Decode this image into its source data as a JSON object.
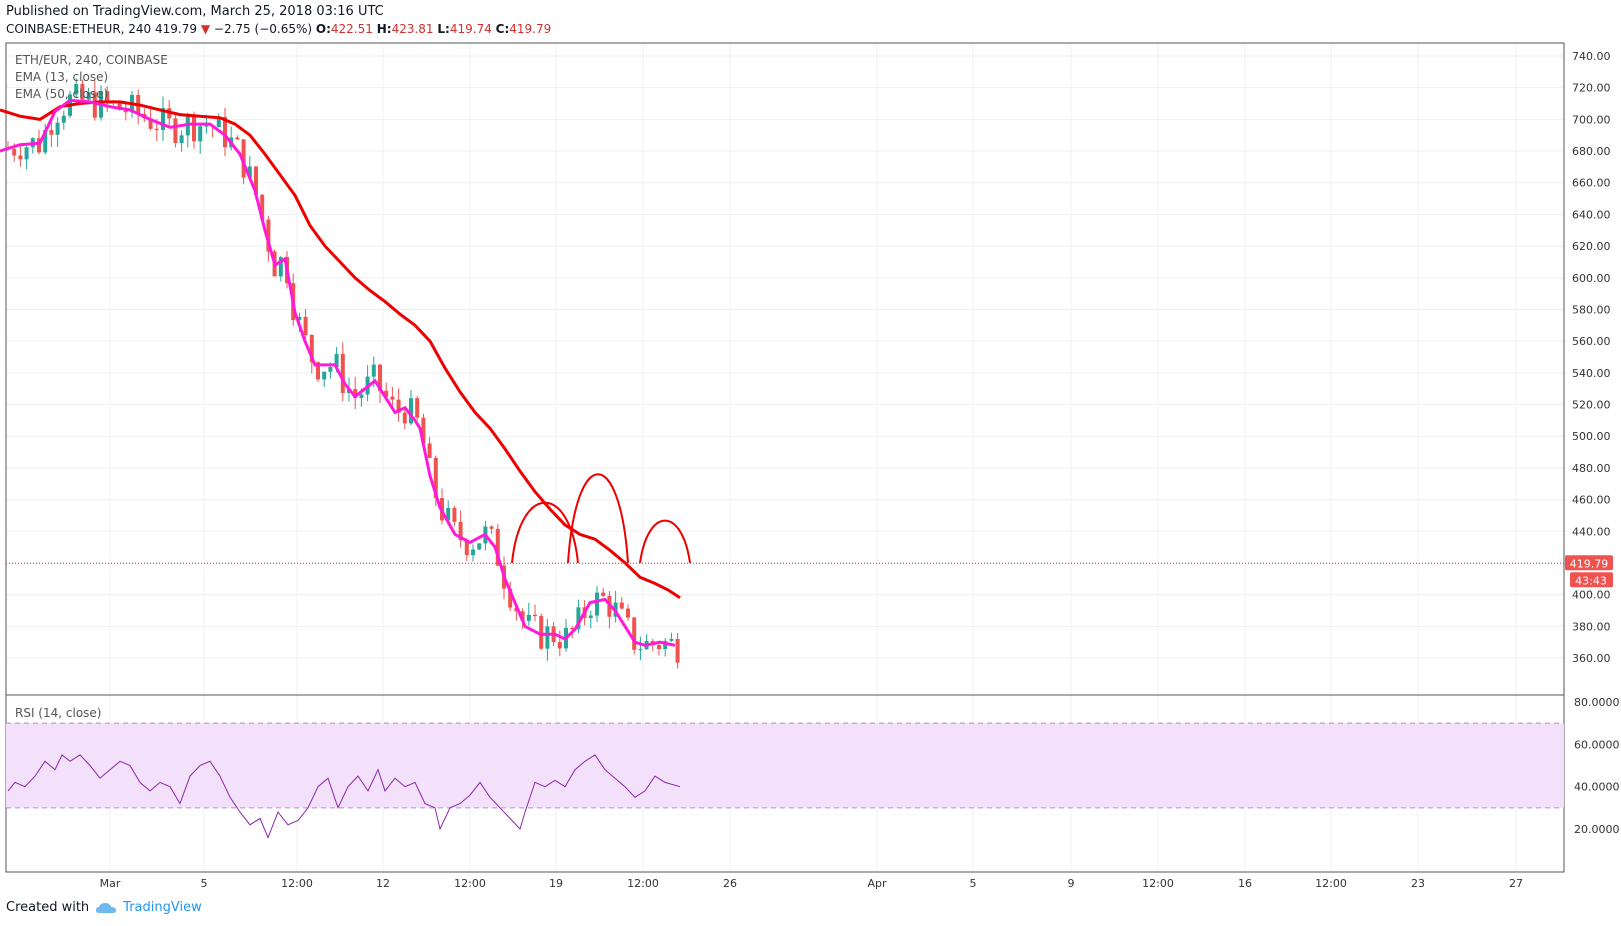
{
  "header": {
    "published": "Published on TradingView.com, March 25, 2018 03:16 UTC",
    "symbol": "COINBASE:ETHEUR, 240",
    "last": "419.79",
    "change": "−2.75 (−0.65%)",
    "o_label": "O:",
    "o_value": "422.51",
    "h_label": "H:",
    "h_value": "423.81",
    "l_label": "L:",
    "l_value": "419.74",
    "c_label": "C:",
    "c_value": "419.79"
  },
  "legend": {
    "pair": "ETH/EUR, 240, COINBASE",
    "ema13": "EMA (13, close)",
    "ema50": "EMA (50, close)",
    "rsi": "RSI (14, close)"
  },
  "footer": {
    "created": "Created with",
    "brand": "TradingView"
  },
  "badges": {
    "price": "419.79",
    "timer": "43:43"
  },
  "colors": {
    "ema13": "#ff1ad9",
    "ema50": "#ee0000",
    "up": "#26a69a",
    "down": "#ef5350",
    "rsi": "#8e24aa",
    "rsi_band": "#f3e0fb"
  },
  "chart_data": {
    "type": "candlestick",
    "price_axis": {
      "ticks": [
        "740.00",
        "720.00",
        "700.00",
        "680.00",
        "660.00",
        "640.00",
        "620.00",
        "600.00",
        "580.00",
        "560.00",
        "540.00",
        "520.00",
        "500.00",
        "480.00",
        "460.00",
        "440.00",
        "400.00",
        "380.00",
        "360.00"
      ],
      "range": [
        350,
        745
      ]
    },
    "time_axis": {
      "ticks": [
        "Mar",
        "5",
        "12:00",
        "12",
        "12:00",
        "19",
        "12:00",
        "26",
        "Apr",
        "5",
        "9",
        "12:00",
        "16",
        "12:00",
        "23",
        "27"
      ]
    },
    "rsi_axis": {
      "ticks": [
        "80.0000",
        "60.0000",
        "40.0000",
        "20.0000"
      ],
      "range": [
        12,
        90
      ],
      "bands": [
        30,
        70
      ]
    },
    "ema13": [
      [
        0,
        680
      ],
      [
        20,
        684
      ],
      [
        40,
        685
      ],
      [
        55,
        705
      ],
      [
        70,
        712
      ],
      [
        90,
        711
      ],
      [
        110,
        708
      ],
      [
        130,
        706
      ],
      [
        150,
        700
      ],
      [
        170,
        695
      ],
      [
        190,
        697
      ],
      [
        210,
        697
      ],
      [
        225,
        690
      ],
      [
        240,
        678
      ],
      [
        255,
        655
      ],
      [
        265,
        630
      ],
      [
        275,
        608
      ],
      [
        285,
        612
      ],
      [
        295,
        578
      ],
      [
        305,
        560
      ],
      [
        315,
        545
      ],
      [
        325,
        545
      ],
      [
        335,
        545
      ],
      [
        345,
        533
      ],
      [
        355,
        525
      ],
      [
        365,
        530
      ],
      [
        375,
        535
      ],
      [
        385,
        525
      ],
      [
        395,
        515
      ],
      [
        405,
        518
      ],
      [
        415,
        510
      ],
      [
        420,
        505
      ],
      [
        430,
        475
      ],
      [
        440,
        455
      ],
      [
        455,
        438
      ],
      [
        470,
        433
      ],
      [
        485,
        438
      ],
      [
        495,
        430
      ],
      [
        505,
        410
      ],
      [
        515,
        395
      ],
      [
        525,
        380
      ],
      [
        540,
        375
      ],
      [
        555,
        375
      ],
      [
        565,
        372
      ],
      [
        575,
        378
      ],
      [
        590,
        395
      ],
      [
        605,
        397
      ],
      [
        615,
        390
      ],
      [
        625,
        380
      ],
      [
        635,
        370
      ],
      [
        645,
        368
      ],
      [
        660,
        370
      ],
      [
        675,
        368
      ]
    ],
    "ema50": [
      [
        0,
        706
      ],
      [
        20,
        702
      ],
      [
        40,
        700
      ],
      [
        60,
        708
      ],
      [
        80,
        710
      ],
      [
        100,
        711
      ],
      [
        120,
        711
      ],
      [
        140,
        709
      ],
      [
        160,
        706
      ],
      [
        180,
        703
      ],
      [
        200,
        702
      ],
      [
        220,
        701
      ],
      [
        235,
        697
      ],
      [
        250,
        690
      ],
      [
        265,
        678
      ],
      [
        280,
        665
      ],
      [
        295,
        652
      ],
      [
        310,
        633
      ],
      [
        325,
        620
      ],
      [
        340,
        610
      ],
      [
        355,
        600
      ],
      [
        370,
        592
      ],
      [
        385,
        585
      ],
      [
        400,
        577
      ],
      [
        415,
        570
      ],
      [
        430,
        560
      ],
      [
        445,
        543
      ],
      [
        460,
        528
      ],
      [
        475,
        515
      ],
      [
        490,
        505
      ],
      [
        505,
        492
      ],
      [
        520,
        478
      ],
      [
        535,
        465
      ],
      [
        550,
        454
      ],
      [
        565,
        444
      ],
      [
        580,
        438
      ],
      [
        595,
        435
      ],
      [
        610,
        428
      ],
      [
        625,
        420
      ],
      [
        640,
        411
      ],
      [
        655,
        407
      ],
      [
        668,
        403
      ],
      [
        680,
        398
      ]
    ],
    "pattern": [
      {
        "type": "arc",
        "name": "left-shoulder"
      },
      {
        "type": "arc",
        "name": "head"
      },
      {
        "type": "arc",
        "name": "right-shoulder"
      }
    ],
    "current_price": 419.79,
    "rsi": [
      [
        8,
        38
      ],
      [
        15,
        42
      ],
      [
        25,
        40
      ],
      [
        35,
        45
      ],
      [
        45,
        52
      ],
      [
        55,
        48
      ],
      [
        62,
        55
      ],
      [
        70,
        52
      ],
      [
        80,
        55
      ],
      [
        90,
        50
      ],
      [
        100,
        44
      ],
      [
        110,
        48
      ],
      [
        120,
        52
      ],
      [
        130,
        50
      ],
      [
        140,
        42
      ],
      [
        150,
        38
      ],
      [
        160,
        42
      ],
      [
        170,
        40
      ],
      [
        180,
        32
      ],
      [
        190,
        45
      ],
      [
        200,
        50
      ],
      [
        210,
        52
      ],
      [
        220,
        45
      ],
      [
        230,
        35
      ],
      [
        240,
        28
      ],
      [
        250,
        22
      ],
      [
        260,
        25
      ],
      [
        268,
        16
      ],
      [
        278,
        28
      ],
      [
        288,
        22
      ],
      [
        298,
        24
      ],
      [
        308,
        30
      ],
      [
        318,
        40
      ],
      [
        328,
        44
      ],
      [
        338,
        30
      ],
      [
        348,
        40
      ],
      [
        358,
        45
      ],
      [
        368,
        38
      ],
      [
        378,
        48
      ],
      [
        385,
        38
      ],
      [
        395,
        44
      ],
      [
        405,
        40
      ],
      [
        415,
        42
      ],
      [
        425,
        32
      ],
      [
        435,
        30
      ],
      [
        440,
        20
      ],
      [
        450,
        30
      ],
      [
        460,
        32
      ],
      [
        470,
        36
      ],
      [
        480,
        42
      ],
      [
        490,
        35
      ],
      [
        500,
        30
      ],
      [
        510,
        25
      ],
      [
        520,
        20
      ],
      [
        525,
        28
      ],
      [
        535,
        42
      ],
      [
        545,
        40
      ],
      [
        555,
        43
      ],
      [
        565,
        40
      ],
      [
        575,
        48
      ],
      [
        585,
        52
      ],
      [
        595,
        55
      ],
      [
        605,
        48
      ],
      [
        615,
        44
      ],
      [
        625,
        40
      ],
      [
        635,
        35
      ],
      [
        645,
        38
      ],
      [
        655,
        45
      ],
      [
        665,
        42
      ],
      [
        680,
        40
      ]
    ]
  }
}
